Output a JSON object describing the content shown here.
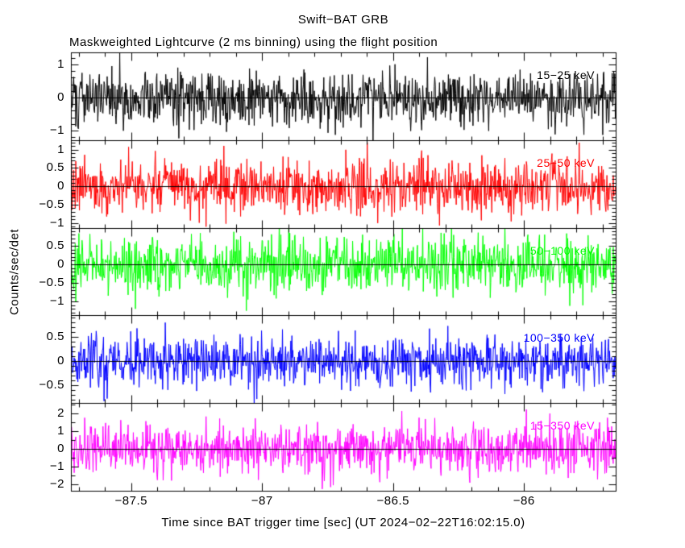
{
  "figure": {
    "title": "Swift−BAT GRB",
    "subtitle": "Maskweighted Lightcurve (2 ms binning) using the flight position",
    "xlabel": "Time since BAT trigger time [sec] (UT 2024−02−22T16:02:15.0)",
    "ylabel": "Counts/sec/det",
    "background_color": "#ffffff",
    "axis_color": "#000000"
  },
  "chart_data": {
    "type": "line",
    "title": "Swift−BAT GRB",
    "subtitle": "Maskweighted Lightcurve (2 ms binning) using the flight position",
    "xlabel": "Time since BAT trigger time [sec] (UT 2024−02−22T16:02:15.0)",
    "ylabel": "Counts/sec/det",
    "description": "Five stacked energy-band panels of zero-mean mask-weighted detector noise versus time before BAT trigger; no burst visible in window",
    "x_range": [
      -87.73,
      -85.65
    ],
    "x_major_ticks": [
      -87.5,
      -87.0,
      -86.5,
      -86.0
    ],
    "x_tick_labels": [
      "−87.5",
      "−87",
      "−86.5",
      "−86"
    ],
    "x_minor_step": 0.1,
    "bin_seconds": 0.002,
    "n_bins": 1041,
    "grid": "off",
    "legend": "none",
    "panels": [
      {
        "band": "15−25 keV",
        "color": "#000000",
        "ylim": [
          -1.29,
          1.37
        ],
        "yticks": [
          1,
          0,
          -1
        ],
        "ytick_labels": [
          "1",
          "0",
          "−1"
        ],
        "y_minor_step": 0.2,
        "noise_sigma": 0.42,
        "noise_mean": 0.0,
        "seed": 101
      },
      {
        "band": "25−50 keV",
        "color": "#ff0000",
        "ylim": [
          -1.13,
          1.26
        ],
        "yticks": [
          1,
          0.5,
          0,
          -0.5,
          -1
        ],
        "ytick_labels": [
          "1",
          "0.5",
          "0",
          "−0.5",
          "−1"
        ],
        "y_minor_step": 0.1,
        "noise_sigma": 0.36,
        "noise_mean": 0.0,
        "seed": 202
      },
      {
        "band": "50−100 keV",
        "color": "#00ff00",
        "ylim": [
          -1.38,
          0.99
        ],
        "yticks": [
          0.5,
          0,
          -0.5,
          -1
        ],
        "ytick_labels": [
          "0.5",
          "0",
          "−0.5",
          "−1"
        ],
        "y_minor_step": 0.1,
        "noise_sigma": 0.36,
        "noise_mean": 0.0,
        "seed": 303
      },
      {
        "band": "100−350 keV",
        "color": "#0000ff",
        "ylim": [
          -0.87,
          0.94
        ],
        "yticks": [
          0.5,
          0,
          -0.5
        ],
        "ytick_labels": [
          "0.5",
          "0",
          "−0.5"
        ],
        "y_minor_step": 0.1,
        "noise_sigma": 0.27,
        "noise_mean": 0.0,
        "seed": 404
      },
      {
        "band": "15−350 keV",
        "color": "#ff00ff",
        "ylim": [
          -2.36,
          2.58
        ],
        "yticks": [
          2,
          1,
          0,
          -1,
          -2
        ],
        "ytick_labels": [
          "2",
          "1",
          "0",
          "−1",
          "−2"
        ],
        "y_minor_step": 0.5,
        "noise_sigma": 0.72,
        "noise_mean": 0.0,
        "seed": 505
      }
    ]
  }
}
